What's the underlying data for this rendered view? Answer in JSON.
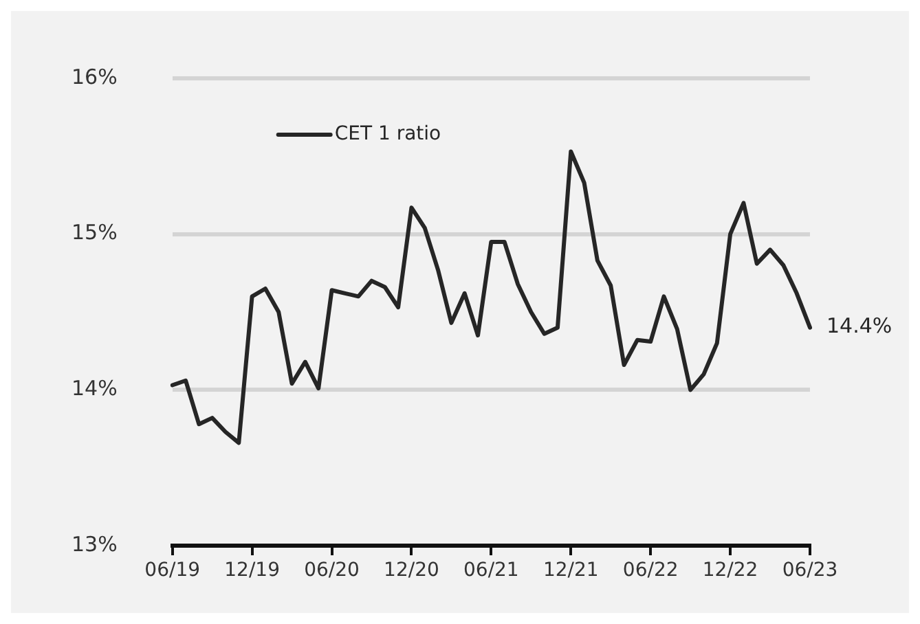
{
  "chart_data": {
    "type": "line",
    "categories": [
      "06/19",
      null,
      null,
      null,
      null,
      null,
      "12/19",
      null,
      null,
      null,
      null,
      null,
      "06/20",
      null,
      null,
      null,
      null,
      null,
      "12/20",
      null,
      null,
      null,
      null,
      null,
      "06/21",
      null,
      null,
      null,
      null,
      null,
      "12/21",
      null,
      null,
      null,
      null,
      null,
      "06/22",
      null,
      null,
      null,
      null,
      null,
      "12/22",
      null,
      null,
      null,
      null,
      null,
      "06/23"
    ],
    "series": [
      {
        "name": "CET 1 ratio",
        "color": "#262626",
        "values": [
          14.03,
          14.06,
          13.78,
          13.82,
          13.73,
          13.66,
          14.6,
          14.65,
          14.5,
          14.04,
          14.18,
          14.01,
          14.64,
          14.62,
          14.6,
          14.7,
          14.66,
          14.53,
          15.17,
          15.04,
          14.77,
          14.43,
          14.62,
          14.35,
          14.95,
          14.95,
          14.68,
          14.5,
          14.36,
          14.4,
          15.53,
          15.33,
          14.83,
          14.67,
          14.16,
          14.32,
          14.31,
          14.6,
          14.39,
          14.0,
          14.1,
          14.3,
          15.0,
          15.2,
          14.81,
          14.9,
          14.8,
          14.62,
          14.4
        ]
      }
    ],
    "ylim": [
      13,
      16
    ],
    "yticks": [
      {
        "value": 13,
        "label": "13%"
      },
      {
        "value": 14,
        "label": "14%"
      },
      {
        "value": 15,
        "label": "15%"
      },
      {
        "value": 16,
        "label": "16%"
      }
    ],
    "grid": "y",
    "legend": "top left",
    "marker": "none",
    "line_style": "solid",
    "annotations": [
      {
        "text": "14.4%",
        "x": "06/23",
        "y": 14.4
      }
    ]
  }
}
